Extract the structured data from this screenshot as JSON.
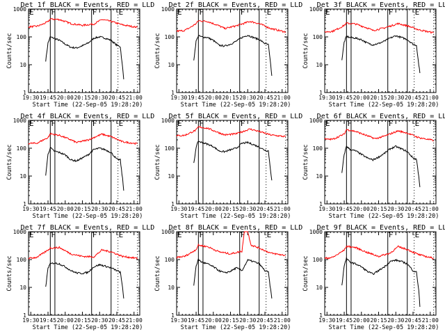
{
  "chart_data": {
    "type": "line",
    "layout": "3x3 grid",
    "shared": {
      "xlabel": "Start Time (22-Sep-05 19:28:20)",
      "ylabel": "Counts/sec",
      "yscale": "log",
      "ylim": [
        1,
        1000
      ],
      "yticks": [
        "1",
        "10",
        "100",
        "1000"
      ],
      "xlim_minutes_from_1930": [
        -2,
        95
      ],
      "xticks": [
        "19:30",
        "19:45",
        "20:00",
        "20:15",
        "20:30",
        "20:45",
        "21:00"
      ],
      "xtick_minutes": [
        0,
        15,
        30,
        45,
        60,
        75,
        90
      ],
      "series_colors": {
        "events": "#000000",
        "lld": "#ff0000"
      },
      "region_markers": [
        {
          "label": "E",
          "minute": -2,
          "style": "none"
        },
        {
          "label": "F",
          "minute": 17,
          "style": "solid"
        },
        {
          "label": "",
          "minute": 21,
          "style": "solid"
        },
        {
          "label": "F",
          "minute": 53,
          "style": "solid"
        },
        {
          "label": "",
          "minute": 70,
          "style": "solid"
        },
        {
          "label": "E",
          "minute": 76,
          "style": "dotted"
        },
        {
          "label": "",
          "minute": 93,
          "style": "dotted"
        }
      ],
      "x_minutes": [
        13,
        15,
        17,
        20,
        25,
        30,
        35,
        40,
        45,
        50,
        55,
        60,
        65,
        70,
        75,
        78,
        80,
        81
      ]
    },
    "panels": [
      {
        "title": "Det 1f BLACK = Events, RED = LLD",
        "series": [
          {
            "name": "Events",
            "values": [
              14,
              60,
              100,
              90,
              75,
              55,
              42,
              40,
              48,
              60,
              90,
              100,
              90,
              75,
              50,
              45,
              8,
              3
            ]
          },
          {
            "name": "LLD",
            "x": [
              -2,
              5,
              10,
              15,
              17,
              25,
              35,
              45,
              55,
              62,
              70,
              80,
              93
            ],
            "values": [
              230,
              240,
              280,
              350,
              440,
              420,
              300,
              260,
              290,
              420,
              360,
              270,
              220
            ]
          }
        ]
      },
      {
        "title": "Det 2f BLACK = Events, RED = LLD",
        "series": [
          {
            "name": "Events",
            "values": [
              15,
              70,
              110,
              100,
              95,
              75,
              50,
              47,
              55,
              70,
              95,
              115,
              95,
              80,
              58,
              52,
              10,
              4
            ]
          },
          {
            "name": "LLD",
            "x": [
              -2,
              5,
              10,
              15,
              17,
              25,
              35,
              40,
              50,
              62,
              70,
              80,
              93
            ],
            "values": [
              160,
              170,
              220,
              300,
              380,
              360,
              250,
              200,
              250,
              360,
              300,
              200,
              150
            ]
          }
        ]
      },
      {
        "title": "Det 3f BLACK = Events, RED = LLD",
        "series": [
          {
            "name": "Events",
            "values": [
              15,
              65,
              105,
              95,
              90,
              80,
              60,
              52,
              58,
              70,
              90,
              110,
              95,
              80,
              55,
              50,
              10,
              5
            ]
          },
          {
            "name": "LLD",
            "x": [
              -2,
              5,
              10,
              15,
              17,
              25,
              35,
              40,
              50,
              62,
              70,
              80,
              93
            ],
            "values": [
              150,
              160,
              200,
              260,
              310,
              290,
              210,
              170,
              210,
              300,
              250,
              180,
              140
            ]
          }
        ]
      },
      {
        "title": "Det 4f BLACK = Events, RED = LLD",
        "series": [
          {
            "name": "Events",
            "values": [
              11,
              60,
              105,
              80,
              70,
              58,
              38,
              35,
              45,
              58,
              90,
              100,
              88,
              70,
              40,
              38,
              8,
              3
            ]
          },
          {
            "name": "LLD",
            "x": [
              -2,
              5,
              10,
              15,
              17,
              25,
              35,
              40,
              50,
              62,
              70,
              80,
              93
            ],
            "values": [
              150,
              150,
              190,
              240,
              330,
              290,
              200,
              160,
              200,
              320,
              260,
              170,
              145
            ]
          }
        ]
      },
      {
        "title": "Det 5f BLACK = Events, RED = LLD",
        "series": [
          {
            "name": "Events",
            "values": [
              28,
              110,
              180,
              160,
              140,
              115,
              80,
              75,
              88,
              100,
              150,
              160,
              135,
              110,
              85,
              80,
              15,
              7
            ]
          },
          {
            "name": "LLD",
            "x": [
              -2,
              5,
              10,
              15,
              17,
              25,
              35,
              40,
              50,
              62,
              70,
              80,
              93
            ],
            "values": [
              280,
              290,
              360,
              450,
              580,
              520,
              360,
              300,
              330,
              490,
              400,
              300,
              260
            ]
          }
        ]
      },
      {
        "title": "Det 6f BLACK = Events, RED = LLD",
        "series": [
          {
            "name": "Events",
            "values": [
              13,
              60,
              120,
              90,
              80,
              60,
              45,
              38,
              48,
              65,
              95,
              115,
              95,
              75,
              45,
              40,
              10,
              4
            ]
          },
          {
            "name": "LLD",
            "x": [
              -2,
              5,
              10,
              15,
              17,
              25,
              35,
              42,
              50,
              62,
              70,
              80,
              93
            ],
            "values": [
              210,
              210,
              260,
              320,
              470,
              400,
              280,
              220,
              270,
              420,
              350,
              240,
              190
            ]
          }
        ]
      },
      {
        "title": "Det 7f BLACK = Events, RED = LLD",
        "series": [
          {
            "name": "Events",
            "values": [
              10,
              50,
              70,
              75,
              70,
              55,
              40,
              33,
              32,
              35,
              55,
              65,
              58,
              50,
              40,
              35,
              10,
              4
            ]
          },
          {
            "name": "LLD",
            "x": [
              -2,
              5,
              10,
              15,
              17,
              25,
              35,
              45,
              55,
              62,
              70,
              80,
              93
            ],
            "values": [
              110,
              120,
              160,
              220,
              260,
              270,
              160,
              130,
              125,
              220,
              190,
              130,
              110
            ]
          }
        ]
      },
      {
        "title": "Det 8f BLACK = Events, RED = LLD",
        "series": [
          {
            "name": "Events",
            "values": [
              12,
              60,
              100,
              80,
              70,
              55,
              40,
              33,
              38,
              50,
              40,
              95,
              85,
              70,
              40,
              35,
              8,
              4
            ]
          },
          {
            "name": "LLD",
            "x": [
              -2,
              5,
              10,
              15,
              17,
              25,
              35,
              45,
              55,
              57,
              60,
              63,
              70,
              80,
              93
            ],
            "values": [
              120,
              130,
              170,
              230,
              330,
              290,
              190,
              160,
              200,
              1000,
              1000,
              330,
              260,
              170,
              140
            ]
          }
        ]
      },
      {
        "title": "Det 9f BLACK = Events, RED = LLD",
        "series": [
          {
            "name": "Events",
            "values": [
              12,
              60,
              110,
              80,
              70,
              55,
              38,
              30,
              40,
              55,
              85,
              95,
              85,
              70,
              40,
              35,
              8,
              2
            ]
          },
          {
            "name": "LLD",
            "x": [
              -2,
              5,
              10,
              15,
              17,
              25,
              35,
              45,
              55,
              62,
              70,
              80,
              93
            ],
            "values": [
              110,
              120,
              160,
              220,
              300,
              270,
              180,
              130,
              170,
              290,
              230,
              150,
              110
            ]
          }
        ]
      }
    ]
  }
}
